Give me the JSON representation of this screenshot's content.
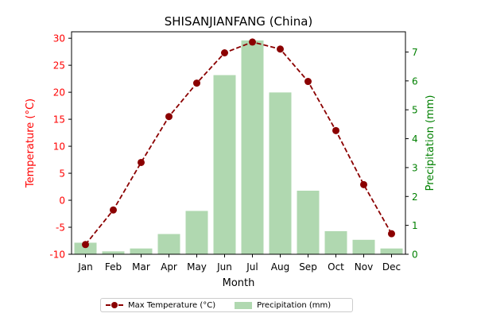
{
  "chart_data": {
    "type": "bar+line",
    "title": "SHISANJIANFANG (China)",
    "xlabel": "Month",
    "categories": [
      "Jan",
      "Feb",
      "Mar",
      "Apr",
      "May",
      "Jun",
      "Jul",
      "Aug",
      "Sep",
      "Oct",
      "Nov",
      "Dec"
    ],
    "left_axis": {
      "label": "Temperature (°C)",
      "color": "#ff0000",
      "ylim": [
        -10,
        31.2
      ],
      "ticks": [
        -10,
        -5,
        0,
        5,
        10,
        15,
        20,
        25,
        30
      ]
    },
    "right_axis": {
      "label": "Precipitation (mm)",
      "color": "#008000",
      "ylim": [
        0,
        7.7
      ],
      "ticks": [
        0,
        1,
        2,
        3,
        4,
        5,
        6,
        7
      ]
    },
    "series": [
      {
        "name": "Max Temperature (°C)",
        "type": "line",
        "axis": "left",
        "color": "#8b0000",
        "values": [
          -8.2,
          -1.8,
          7.0,
          15.5,
          21.7,
          27.3,
          29.3,
          28.0,
          22.0,
          12.9,
          2.9,
          -6.2
        ]
      },
      {
        "name": "Precipitation (mm)",
        "type": "bar",
        "axis": "right",
        "color": "#b0d8b0",
        "values": [
          0.4,
          0.1,
          0.2,
          0.7,
          1.5,
          6.2,
          7.4,
          5.6,
          2.2,
          0.8,
          0.5,
          0.2
        ]
      }
    ],
    "legend": {
      "position": "bottom-center",
      "items": [
        "Max Temperature (°C)",
        "Precipitation (mm)"
      ]
    },
    "grid": false
  }
}
